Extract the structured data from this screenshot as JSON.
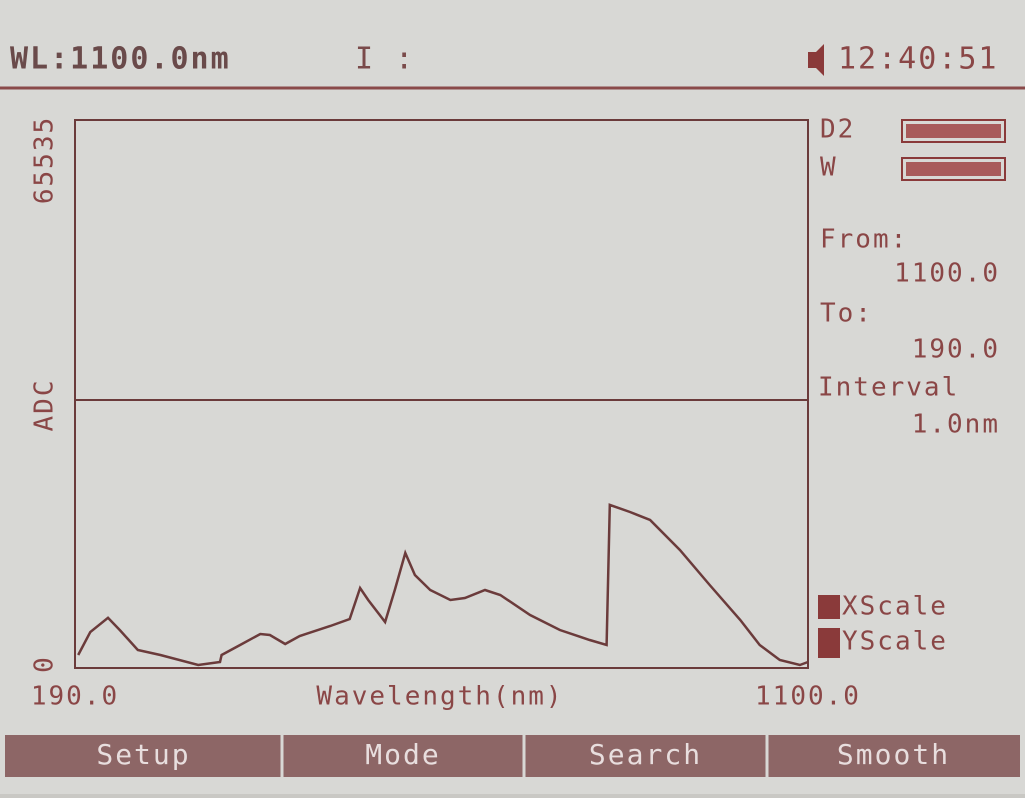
{
  "header": {
    "wavelength": "WL:1100.0nm",
    "mode": "I :",
    "time": "12:40:51"
  },
  "chart_data": {
    "type": "line",
    "ylabel": "ADC",
    "xlabel": "Wavelength(nm)",
    "x": [
      194,
      209,
      231,
      246,
      268,
      296,
      343,
      370,
      372,
      395,
      420,
      432,
      451,
      469,
      507,
      531,
      544,
      554,
      575,
      587,
      600,
      612,
      631,
      656,
      674,
      699,
      718,
      755,
      792,
      829,
      850,
      854,
      879,
      904,
      941,
      978,
      1016,
      1040,
      1065,
      1090,
      1100
    ],
    "values": [
      1550,
      4300,
      6000,
      4500,
      2150,
      1550,
      360,
      720,
      1550,
      2750,
      4070,
      3950,
      2870,
      3830,
      5020,
      5860,
      9570,
      8130,
      5500,
      9330,
      13750,
      11120,
      9330,
      8130,
      8370,
      9330,
      8730,
      6340,
      4545,
      3350,
      2750,
      19500,
      18660,
      17700,
      14110,
      9930,
      5740,
      2750,
      960,
      360,
      720
    ],
    "color": "#6b3b3b",
    "xlim": [
      190,
      1100
    ],
    "xticks": [
      {
        "value": 190,
        "label": "190.0"
      },
      {
        "value": 1100,
        "label": "1100.0"
      }
    ],
    "ylim": [
      0,
      65535
    ],
    "yticks": [
      0,
      65535
    ]
  },
  "sidebar": {
    "lamps": [
      "D2",
      "W"
    ],
    "from_label": "From:",
    "from_value": "1100.0",
    "to_label": "To:",
    "to_value": "190.0",
    "interval_label": "Interval",
    "interval_value": "1.0nm",
    "xscale": "XScale",
    "yscale": "YScale"
  },
  "buttons": [
    "Setup",
    "Mode",
    "Search",
    "Smooth"
  ]
}
